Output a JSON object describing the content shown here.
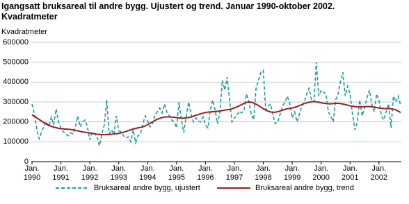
{
  "chart_data": {
    "type": "line",
    "title": "Igangsatt bruksareal til andre bygg. Ujustert og trend. Januar 1990-oktober 2002.",
    "subtitle": "Kvadratmeter",
    "y_label": "Kvadratmeter",
    "categories": [
      "Jan. 1990",
      null,
      null,
      null,
      null,
      null,
      null,
      null,
      null,
      null,
      null,
      null,
      "Jan. 1991",
      null,
      null,
      null,
      null,
      null,
      null,
      null,
      null,
      null,
      null,
      null,
      "Jan. 1992",
      null,
      null,
      null,
      null,
      null,
      null,
      null,
      null,
      null,
      null,
      null,
      "Jan. 1993",
      null,
      null,
      null,
      null,
      null,
      null,
      null,
      null,
      null,
      null,
      null,
      "Jan. 1994",
      null,
      null,
      null,
      null,
      null,
      null,
      null,
      null,
      null,
      null,
      null,
      "Jan. 1995",
      null,
      null,
      null,
      null,
      null,
      null,
      null,
      null,
      null,
      null,
      null,
      "Jan. 1996",
      null,
      null,
      null,
      null,
      null,
      null,
      null,
      null,
      null,
      null,
      null,
      "Jan. 1997",
      null,
      null,
      null,
      null,
      null,
      null,
      null,
      null,
      null,
      null,
      null,
      "Jan. 1998",
      null,
      null,
      null,
      null,
      null,
      null,
      null,
      null,
      null,
      null,
      null,
      "Jan. 1999",
      null,
      null,
      null,
      null,
      null,
      null,
      null,
      null,
      null,
      null,
      null,
      "Jan. 2000",
      null,
      null,
      null,
      null,
      null,
      null,
      null,
      null,
      null,
      null,
      null,
      "Jan. 2001",
      null,
      null,
      null,
      null,
      null,
      null,
      null,
      null,
      null,
      null,
      null,
      "Jan. 2002",
      null,
      null,
      null,
      null,
      null,
      null,
      null,
      null,
      null
    ],
    "series": [
      {
        "name": "Bruksareal andre bygg, ujustert",
        "color": "#1f9a9a",
        "dashed": true,
        "values": [
          290000,
          240000,
          160000,
          115000,
          150000,
          180000,
          200000,
          175000,
          225000,
          185000,
          265000,
          200000,
          170000,
          150000,
          140000,
          130000,
          145000,
          140000,
          175000,
          230000,
          175000,
          200000,
          210000,
          175000,
          110000,
          150000,
          140000,
          125000,
          80000,
          140000,
          185000,
          310000,
          140000,
          160000,
          135000,
          230000,
          155000,
          150000,
          130000,
          120000,
          125000,
          100000,
          160000,
          95000,
          130000,
          140000,
          190000,
          230000,
          205000,
          175000,
          190000,
          235000,
          250000,
          270000,
          245000,
          290000,
          250000,
          230000,
          210000,
          200000,
          170000,
          300000,
          210000,
          145000,
          230000,
          300000,
          240000,
          200000,
          220000,
          205000,
          200000,
          225000,
          185000,
          170000,
          260000,
          310000,
          260000,
          190000,
          250000,
          410000,
          360000,
          425000,
          310000,
          200000,
          220000,
          230000,
          255000,
          245000,
          260000,
          340000,
          300000,
          240000,
          210000,
          370000,
          410000,
          450000,
          460000,
          260000,
          280000,
          290000,
          230000,
          190000,
          200000,
          240000,
          280000,
          300000,
          330000,
          290000,
          220000,
          250000,
          200000,
          240000,
          280000,
          300000,
          340000,
          370000,
          310000,
          300000,
          500000,
          330000,
          360000,
          350000,
          340000,
          250000,
          230000,
          200000,
          310000,
          340000,
          400000,
          450000,
          330000,
          380000,
          340000,
          240000,
          160000,
          200000,
          310000,
          230000,
          270000,
          320000,
          360000,
          290000,
          250000,
          340000,
          310000,
          230000,
          210000,
          250000,
          290000,
          170000,
          330000,
          300000,
          330000,
          280000
        ]
      },
      {
        "name": "Bruksareal andre bygg, trend",
        "color": "#9b1c1c",
        "dashed": false,
        "values": [
          235000,
          228000,
          220000,
          212000,
          204000,
          196000,
          189000,
          183000,
          178000,
          174000,
          171000,
          168000,
          166000,
          165000,
          164000,
          163000,
          162000,
          160000,
          158000,
          155000,
          152000,
          150000,
          148000,
          146000,
          144000,
          142000,
          140000,
          138000,
          137000,
          136000,
          136000,
          136000,
          137000,
          138000,
          139000,
          140000,
          142000,
          145000,
          148000,
          152000,
          156000,
          160000,
          164000,
          167000,
          170000,
          172000,
          175000,
          180000,
          186000,
          193000,
          200000,
          207000,
          213000,
          218000,
          222000,
          224000,
          225000,
          225000,
          224000,
          223000,
          222000,
          220000,
          219000,
          219000,
          220000,
          222000,
          225000,
          229000,
          233000,
          237000,
          241000,
          244000,
          247000,
          249000,
          250000,
          251000,
          252000,
          253000,
          255000,
          257000,
          259000,
          261000,
          263000,
          266000,
          270000,
          275000,
          281000,
          287000,
          293000,
          298000,
          300000,
          299000,
          295000,
          289000,
          282000,
          274000,
          267000,
          260000,
          254000,
          250000,
          248000,
          249000,
          251000,
          255000,
          259000,
          263000,
          266000,
          268000,
          270000,
          273000,
          277000,
          282000,
          287000,
          292000,
          296000,
          299000,
          301000,
          302000,
          301000,
          299000,
          296000,
          294000,
          292000,
          291000,
          291000,
          292000,
          293000,
          293000,
          292000,
          290000,
          287000,
          284000,
          281000,
          279000,
          277000,
          276000,
          276000,
          276000,
          276000,
          277000,
          277000,
          276000,
          274000,
          272000,
          270000,
          268000,
          267000,
          267000,
          267000,
          266000,
          264000,
          260000,
          254000,
          247000
        ]
      }
    ],
    "ylim": [
      0,
      600000
    ],
    "yticks": [
      0,
      100000,
      200000,
      300000,
      400000,
      500000,
      600000
    ],
    "grid": true
  }
}
